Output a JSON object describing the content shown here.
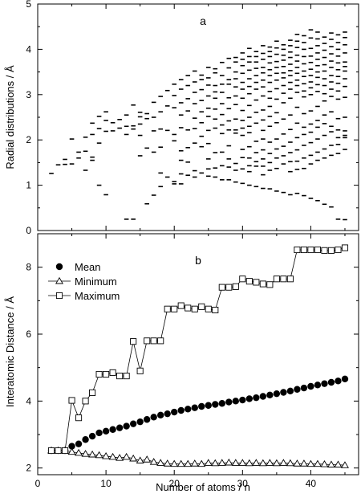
{
  "chart_data": [
    {
      "type": "scatter",
      "panel_label": "a",
      "xlabel": "",
      "ylabel": "Radial distributions / Å",
      "xlim": [
        0,
        47
      ],
      "ylim": [
        0,
        5
      ],
      "yticks": [
        0,
        1,
        2,
        3,
        4,
        5
      ],
      "xticks": [
        0,
        10,
        20,
        30,
        40
      ],
      "marker": "dash",
      "x_tick_labels_shown": false,
      "columns": [
        {
          "n": 2,
          "r": [
            1.26
          ]
        },
        {
          "n": 3,
          "r": [
            1.45
          ]
        },
        {
          "n": 4,
          "r": [
            1.57,
            1.46
          ]
        },
        {
          "n": 5,
          "r": [
            2.02,
            1.47
          ]
        },
        {
          "n": 6,
          "r": [
            1.73,
            1.6
          ]
        },
        {
          "n": 7,
          "r": [
            2.06,
            1.75,
            1.33
          ]
        },
        {
          "n": 8,
          "r": [
            2.37,
            2.12,
            1.62,
            1.55
          ]
        },
        {
          "n": 9,
          "r": [
            2.52,
            2.25,
            1.93,
            1.0
          ]
        },
        {
          "n": 10,
          "r": [
            2.62,
            2.43,
            2.19,
            0.79
          ]
        },
        {
          "n": 11,
          "r": [
            2.38,
            2.2
          ]
        },
        {
          "n": 12,
          "r": [
            2.45,
            2.26
          ]
        },
        {
          "n": 13,
          "r": [
            2.55,
            2.3,
            2.12,
            0.25
          ]
        },
        {
          "n": 14,
          "r": [
            2.77,
            2.31,
            2.24,
            0.25
          ]
        },
        {
          "n": 15,
          "r": [
            2.61,
            2.51,
            2.35,
            2.1,
            1.65
          ]
        },
        {
          "n": 16,
          "r": [
            2.58,
            2.47,
            1.82,
            0.59
          ]
        },
        {
          "n": 17,
          "r": [
            2.83,
            2.5,
            2.2,
            1.73,
            0.78
          ]
        },
        {
          "n": 18,
          "r": [
            2.96,
            2.62,
            2.24,
            1.84,
            1.27,
            0.97
          ]
        },
        {
          "n": 19,
          "r": [
            3.09,
            2.75,
            2.21,
            1.18
          ]
        },
        {
          "n": 20,
          "r": [
            3.23,
            2.98,
            2.71,
            2.12,
            1.98,
            1.08,
            1.03
          ]
        },
        {
          "n": 21,
          "r": [
            3.33,
            3.12,
            2.82,
            2.55,
            2.27,
            1.76,
            1.55,
            1.25,
            1.03
          ]
        },
        {
          "n": 22,
          "r": [
            3.42,
            3.2,
            2.91,
            2.64,
            2.22,
            1.83,
            1.51,
            1.22
          ]
        },
        {
          "n": 23,
          "r": [
            3.52,
            3.28,
            3.05,
            2.8,
            2.48,
            2.25,
            1.93,
            1.32,
            1.18
          ]
        },
        {
          "n": 24,
          "r": [
            3.43,
            3.33,
            3.11,
            2.87,
            2.62,
            2.38,
            2.08,
            1.85,
            1.27
          ]
        },
        {
          "n": 25,
          "r": [
            3.6,
            3.37,
            3.21,
            2.97,
            2.7,
            2.52,
            2.21,
            1.92,
            1.58,
            1.36,
            1.2
          ]
        },
        {
          "n": 26,
          "r": [
            3.57,
            3.48,
            3.2,
            3.06,
            2.92,
            2.68,
            2.46,
            2.26,
            1.72,
            1.38,
            1.18
          ]
        },
        {
          "n": 27,
          "r": [
            3.71,
            3.42,
            3.23,
            3.05,
            2.8,
            2.56,
            2.33,
            2.14,
            1.73,
            1.43,
            1.12
          ]
        },
        {
          "n": 28,
          "r": [
            3.8,
            3.59,
            3.33,
            3.23,
            2.93,
            2.69,
            2.42,
            2.22,
            1.87,
            1.58,
            1.4,
            1.12
          ]
        },
        {
          "n": 29,
          "r": [
            3.82,
            3.72,
            3.5,
            3.35,
            3.17,
            2.97,
            2.78,
            2.46,
            2.22,
            2.15,
            1.48,
            1.33,
            1.07
          ]
        },
        {
          "n": 30,
          "r": [
            3.92,
            3.78,
            3.64,
            3.47,
            3.27,
            3.12,
            2.92,
            2.65,
            2.43,
            2.26,
            2.1,
            1.79,
            1.61,
            1.36,
            1.04
          ]
        },
        {
          "n": 31,
          "r": [
            4.02,
            3.84,
            3.72,
            3.54,
            3.35,
            3.18,
            3.02,
            2.76,
            2.5,
            2.3,
            2.16,
            1.85,
            1.6,
            1.43,
            1.3,
            1.0
          ]
        },
        {
          "n": 32,
          "r": [
            3.95,
            3.84,
            3.72,
            3.58,
            3.42,
            3.27,
            3.12,
            2.88,
            2.61,
            2.37,
            1.97,
            1.72,
            1.52,
            1.42,
            0.97
          ]
        },
        {
          "n": 33,
          "r": [
            4.08,
            3.91,
            3.78,
            3.6,
            3.48,
            3.32,
            3.17,
            2.97,
            2.66,
            2.44,
            2.21,
            2.02,
            1.78,
            1.58,
            1.42,
            1.23,
            0.93
          ]
        },
        {
          "n": 34,
          "r": [
            4.05,
            3.95,
            3.84,
            3.7,
            3.55,
            3.42,
            3.27,
            3.07,
            2.92,
            2.74,
            2.52,
            2.3,
            1.95,
            1.7,
            1.5,
            1.33,
            0.92
          ]
        },
        {
          "n": 35,
          "r": [
            4.18,
            4.03,
            3.89,
            3.73,
            3.6,
            3.47,
            3.32,
            3.13,
            2.9,
            2.6,
            2.38,
            2.02,
            1.8,
            1.6,
            1.37,
            0.87
          ]
        },
        {
          "n": 36,
          "r": [
            4.1,
            4.0,
            3.87,
            3.76,
            3.62,
            3.48,
            3.37,
            3.2,
            3.03,
            2.82,
            2.46,
            2.13,
            1.86,
            1.65,
            1.47,
            0.84
          ]
        },
        {
          "n": 37,
          "r": [
            4.2,
            4.08,
            3.94,
            3.82,
            3.67,
            3.53,
            3.42,
            3.27,
            3.12,
            2.92,
            2.55,
            2.23,
            1.95,
            1.72,
            1.52,
            1.3,
            0.79
          ]
        },
        {
          "n": 38,
          "r": [
            4.33,
            4.18,
            4.04,
            3.87,
            3.74,
            3.6,
            3.47,
            3.32,
            3.2,
            3.05,
            2.72,
            2.37,
            2.05,
            1.78,
            1.53,
            1.35,
            0.82
          ]
        },
        {
          "n": 39,
          "r": [
            4.3,
            4.15,
            4.0,
            3.84,
            3.68,
            3.52,
            3.4,
            3.24,
            3.08,
            2.95,
            2.58,
            2.28,
            2.12,
            1.88,
            1.6,
            1.37,
            0.77
          ]
        },
        {
          "n": 40,
          "r": [
            4.43,
            4.25,
            4.02,
            3.85,
            3.71,
            3.56,
            3.42,
            3.28,
            3.15,
            3.0,
            2.64,
            2.35,
            2.17,
            1.94,
            1.66,
            1.47,
            0.71
          ]
        },
        {
          "n": 41,
          "r": [
            4.38,
            4.23,
            4.08,
            3.92,
            3.78,
            3.64,
            3.5,
            3.38,
            3.22,
            3.07,
            2.74,
            2.43,
            2.28,
            2.02,
            1.73,
            1.55,
            0.66
          ]
        },
        {
          "n": 42,
          "r": [
            4.27,
            4.13,
            3.98,
            3.82,
            3.66,
            3.52,
            3.35,
            3.2,
            3.02,
            2.86,
            2.55,
            2.36,
            2.1,
            1.8,
            1.6,
            0.58
          ]
        },
        {
          "n": 43,
          "r": [
            4.36,
            4.22,
            4.06,
            3.9,
            3.74,
            3.6,
            3.42,
            3.28,
            3.12,
            2.96,
            2.62,
            2.3,
            2.18,
            1.88,
            1.66,
            0.52
          ]
        },
        {
          "n": 44,
          "r": [
            4.32,
            4.15,
            4.0,
            3.85,
            3.7,
            3.55,
            3.4,
            3.25,
            3.08,
            2.9,
            2.47,
            2.22,
            2.05,
            1.9,
            1.7,
            0.25
          ]
        },
        {
          "n": 45,
          "r": [
            4.38,
            4.26,
            4.1,
            3.92,
            3.72,
            3.62,
            3.52,
            3.35,
            3.18,
            2.94,
            2.5,
            2.2,
            2.1,
            2.05,
            1.79,
            0.24
          ]
        }
      ]
    },
    {
      "type": "line",
      "panel_label": "b",
      "xlabel": "Number of atoms / n",
      "ylabel": "Interatomic Distance / Å",
      "xlim": [
        0,
        47
      ],
      "ylim": [
        1.8,
        9.0
      ],
      "xticks": [
        0,
        10,
        20,
        30,
        40
      ],
      "yticks": [
        2,
        4,
        6,
        8
      ],
      "legend_position": "top-left",
      "series": [
        {
          "name": "Mean",
          "marker": "filled-circle",
          "line": false,
          "x": [
            2,
            3,
            4,
            5,
            6,
            7,
            8,
            9,
            10,
            11,
            12,
            13,
            14,
            15,
            16,
            17,
            18,
            19,
            20,
            21,
            22,
            23,
            24,
            25,
            26,
            27,
            28,
            29,
            30,
            31,
            32,
            33,
            34,
            35,
            36,
            37,
            38,
            39,
            40,
            41,
            42,
            43,
            44,
            45
          ],
          "y": [
            2.52,
            2.52,
            2.52,
            2.65,
            2.72,
            2.85,
            2.95,
            3.05,
            3.1,
            3.15,
            3.2,
            3.25,
            3.32,
            3.38,
            3.45,
            3.52,
            3.58,
            3.62,
            3.67,
            3.72,
            3.76,
            3.8,
            3.84,
            3.87,
            3.9,
            3.93,
            3.97,
            4.0,
            4.03,
            4.07,
            4.1,
            4.14,
            4.18,
            4.22,
            4.26,
            4.3,
            4.35,
            4.39,
            4.44,
            4.48,
            4.52,
            4.56,
            4.6,
            4.66
          ]
        },
        {
          "name": "Minimum",
          "marker": "open-triangle",
          "line": true,
          "x": [
            2,
            3,
            4,
            5,
            6,
            7,
            8,
            9,
            10,
            11,
            12,
            13,
            14,
            15,
            16,
            17,
            18,
            19,
            20,
            21,
            22,
            23,
            24,
            25,
            26,
            27,
            28,
            29,
            30,
            31,
            32,
            33,
            34,
            35,
            36,
            37,
            38,
            39,
            40,
            41,
            42,
            43,
            44,
            45
          ],
          "y": [
            2.52,
            2.52,
            2.52,
            2.48,
            2.45,
            2.42,
            2.4,
            2.38,
            2.35,
            2.33,
            2.3,
            2.33,
            2.28,
            2.22,
            2.25,
            2.18,
            2.15,
            2.13,
            2.12,
            2.12,
            2.12,
            2.13,
            2.12,
            2.15,
            2.14,
            2.15,
            2.16,
            2.15,
            2.15,
            2.14,
            2.15,
            2.14,
            2.15,
            2.14,
            2.15,
            2.14,
            2.13,
            2.13,
            2.12,
            2.12,
            2.11,
            2.1,
            2.1,
            2.08
          ]
        },
        {
          "name": "Maximum",
          "marker": "open-square",
          "line": true,
          "x": [
            2,
            3,
            4,
            5,
            6,
            7,
            8,
            9,
            10,
            11,
            12,
            13,
            14,
            15,
            16,
            17,
            18,
            19,
            20,
            21,
            22,
            23,
            24,
            25,
            26,
            27,
            28,
            29,
            30,
            31,
            32,
            33,
            34,
            35,
            36,
            37,
            38,
            39,
            40,
            41,
            42,
            43,
            44,
            45
          ],
          "y": [
            2.52,
            2.52,
            2.52,
            4.02,
            3.5,
            4.0,
            4.25,
            4.8,
            4.8,
            4.85,
            4.75,
            4.75,
            5.78,
            4.9,
            5.8,
            5.8,
            5.8,
            6.75,
            6.75,
            6.85,
            6.78,
            6.75,
            6.82,
            6.75,
            6.72,
            7.4,
            7.4,
            7.42,
            7.65,
            7.58,
            7.55,
            7.5,
            7.48,
            7.65,
            7.65,
            7.65,
            8.52,
            8.52,
            8.52,
            8.52,
            8.5,
            8.5,
            8.52,
            8.58
          ]
        }
      ]
    }
  ]
}
